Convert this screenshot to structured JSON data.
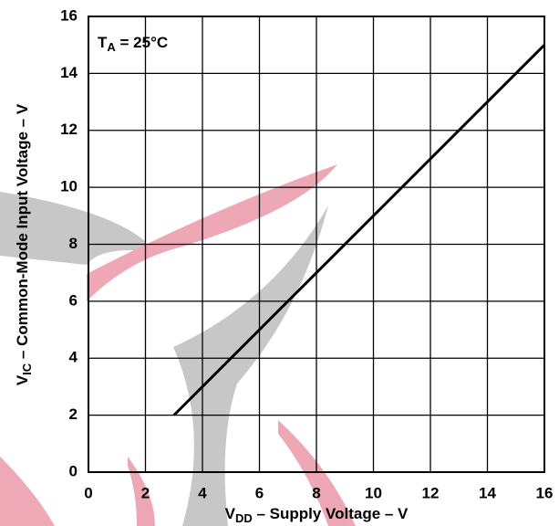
{
  "chart_data": {
    "type": "line",
    "annotation": [
      "T",
      "A",
      " = 25°C"
    ],
    "xlabel": [
      "V",
      "DD",
      " – Supply Voltage – V"
    ],
    "ylabel": [
      "V",
      "IC",
      " – Common-Mode Input Voltage – V"
    ],
    "series": [
      {
        "x": [
          3,
          16
        ],
        "values": [
          2,
          15
        ],
        "color": "#000000"
      }
    ],
    "xlim": [
      0,
      16
    ],
    "xticks": [
      0,
      2,
      4,
      6,
      8,
      10,
      12,
      14,
      16
    ],
    "ylim": [
      0,
      16
    ],
    "yticks": [
      0,
      2,
      4,
      6,
      8,
      10,
      12,
      14,
      16
    ],
    "grid": true
  }
}
